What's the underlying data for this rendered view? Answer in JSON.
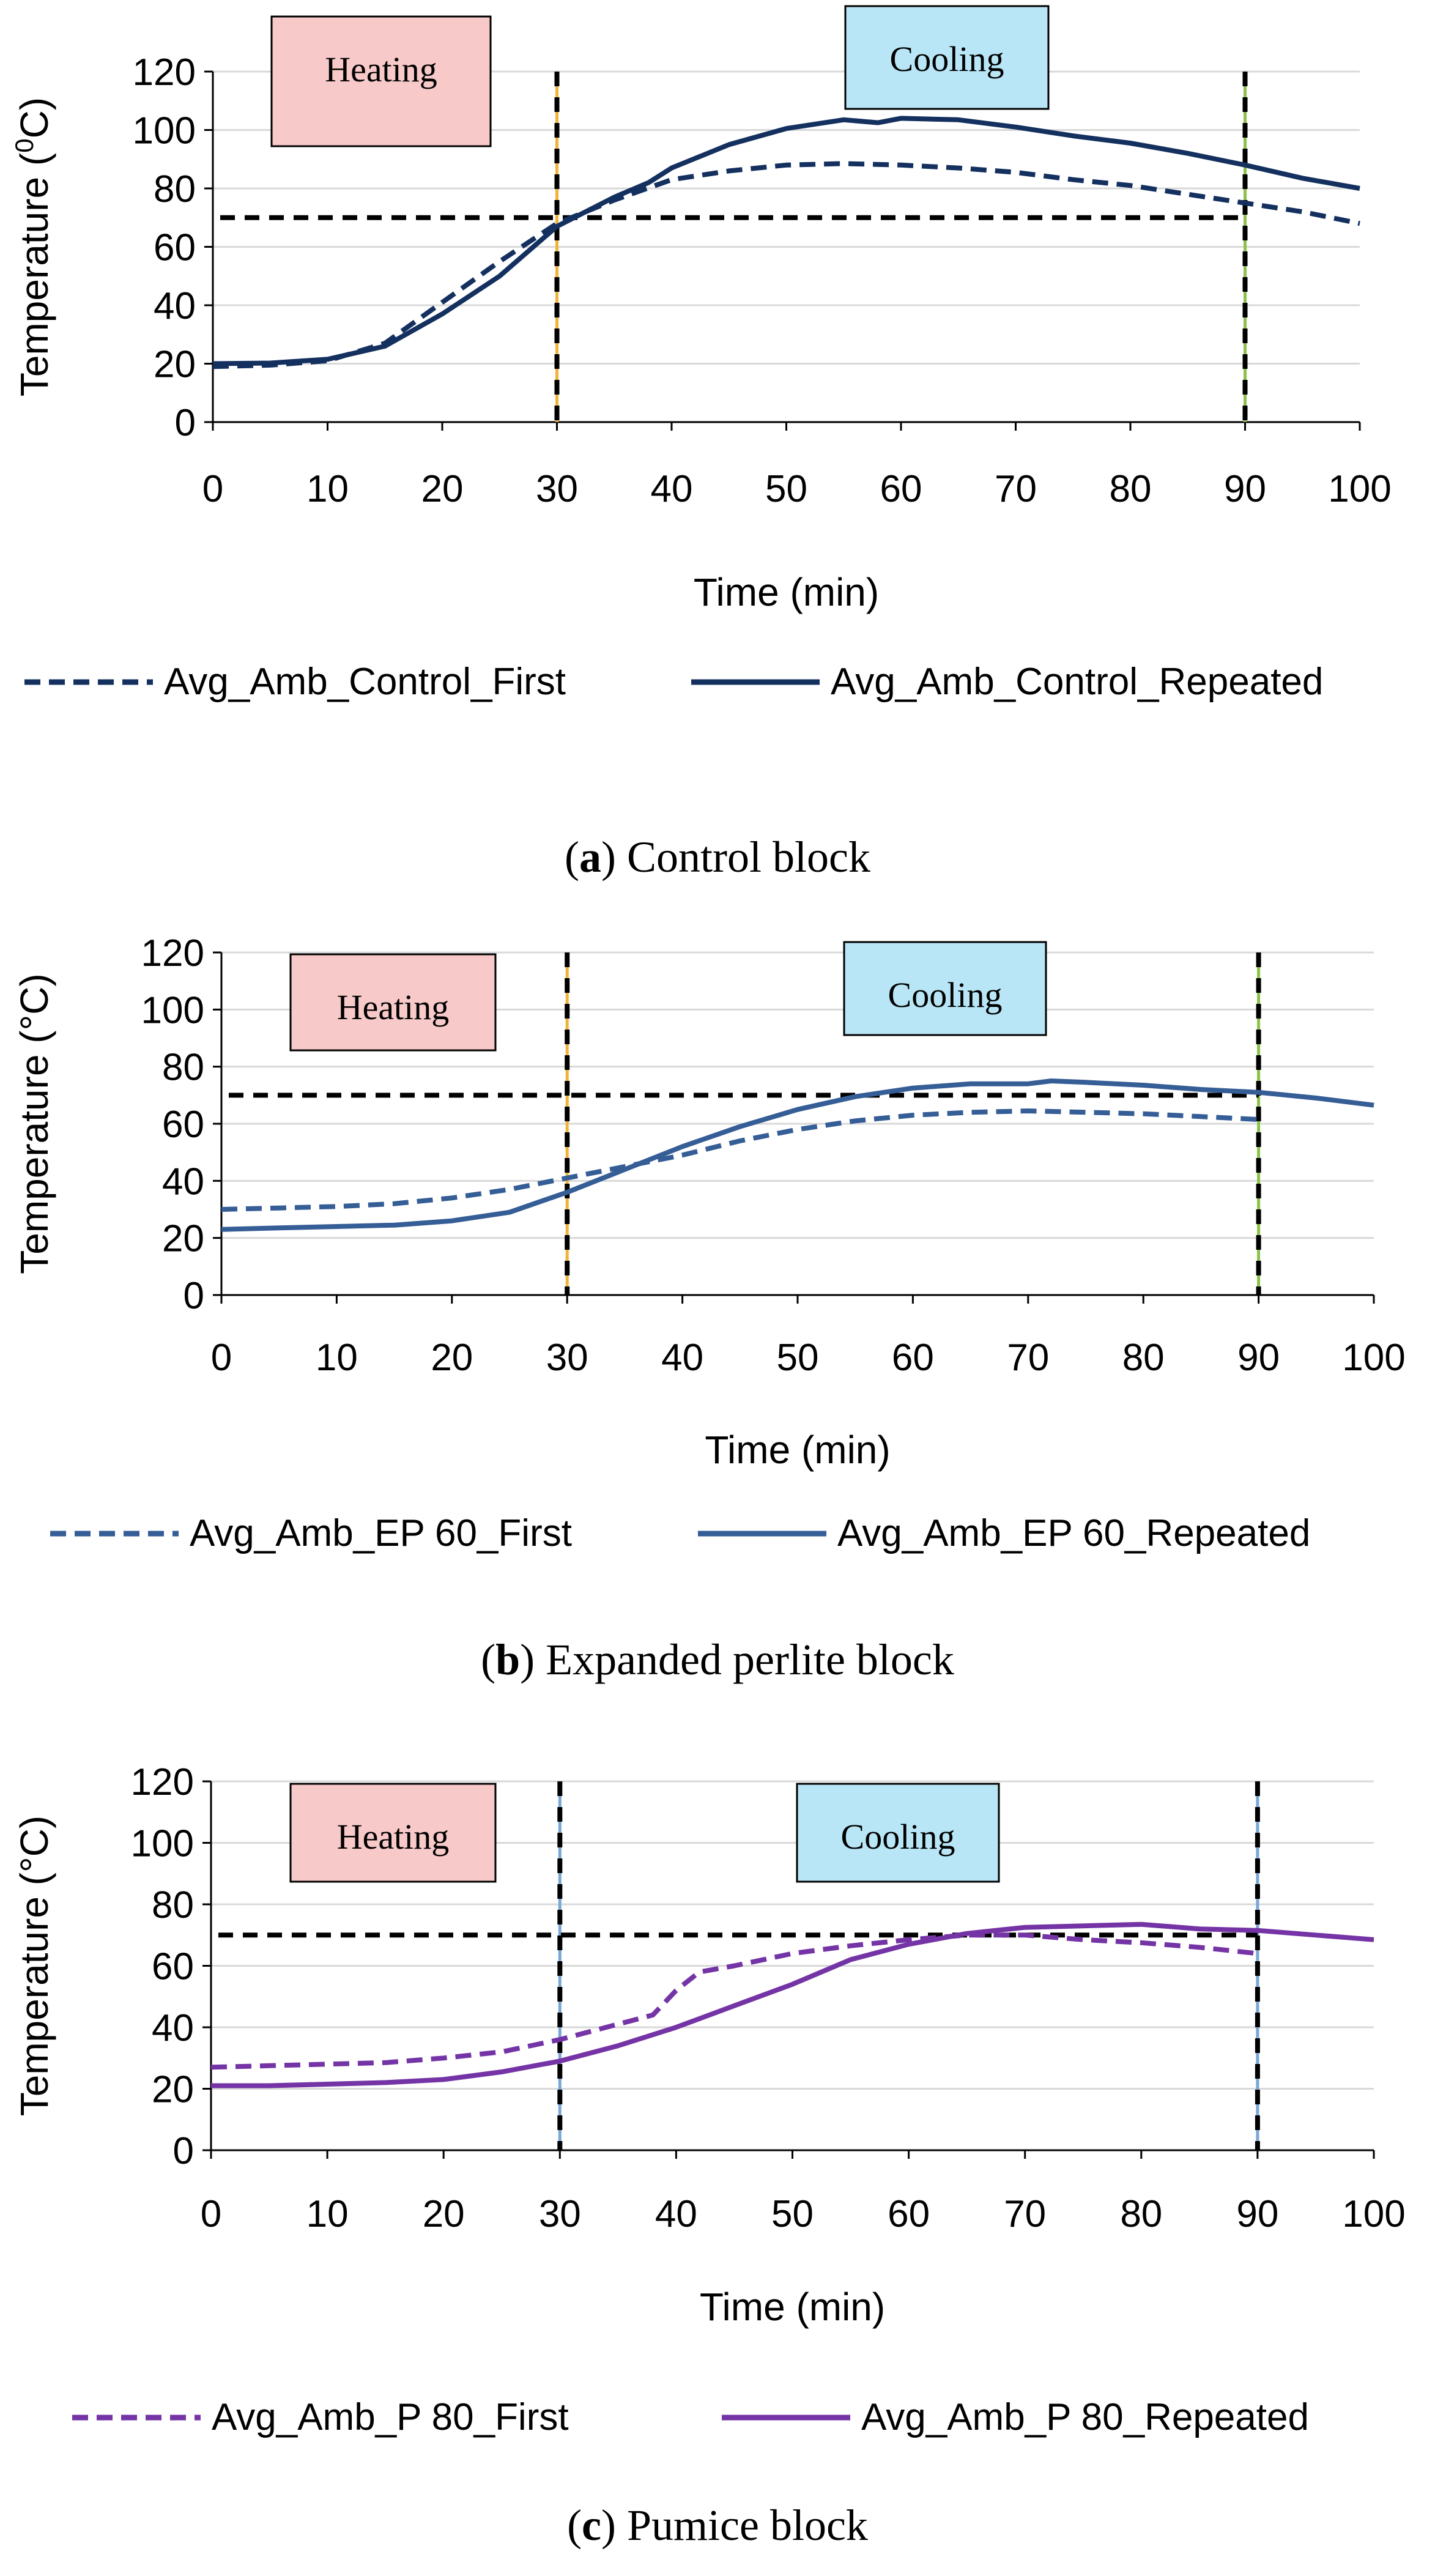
{
  "colors": {
    "control": "#14305f",
    "ep": "#355d96",
    "pumice": "#7434a6",
    "heating_box": "#f8c9c9",
    "cooling_box": "#b8e6f6",
    "threshold": "#000000",
    "axis": "#000000",
    "grid": "#d9d9d9",
    "marker_heat": "#f0b43a",
    "marker_cool": "#8bc34a",
    "marker_blue": "#79a7d8"
  },
  "chart_data": [
    {
      "id": "a",
      "type": "line",
      "xlabel": "Time (min)",
      "ylabel_main": "Temperature (",
      "ylabel_sup": "0",
      "ylabel_end": "C)",
      "xlim": [
        0,
        100
      ],
      "ylim": [
        0,
        120
      ],
      "xticks": [
        0,
        10,
        20,
        30,
        40,
        50,
        60,
        70,
        80,
        90,
        100
      ],
      "yticks": [
        0,
        20,
        40,
        60,
        80,
        100,
        120
      ],
      "xtick_labels": [
        "0",
        "10",
        "20",
        "30",
        "40",
        "50",
        "60",
        "70",
        "80",
        "90",
        "100"
      ],
      "ytick_labels": [
        "0",
        "20",
        "40",
        "60",
        "80",
        "100",
        "120"
      ],
      "annotations": {
        "heating": "Heating",
        "cooling": "Cooling"
      },
      "threshold": 70,
      "vlines": [
        30,
        90
      ],
      "caption": {
        "letter": "a",
        "text": ") Control block"
      },
      "series": [
        {
          "name": "Avg_Amb_Control_First",
          "dash": true,
          "x": [
            0,
            5,
            10,
            15,
            20,
            25,
            30,
            35,
            40,
            45,
            50,
            55,
            60,
            65,
            70,
            75,
            80,
            85,
            90,
            95,
            100
          ],
          "values": [
            19,
            19.5,
            21,
            27,
            41,
            55,
            68,
            76,
            83,
            86,
            88,
            88.5,
            88,
            87,
            85.5,
            83,
            81,
            78,
            75,
            72,
            68
          ]
        },
        {
          "name": "Avg_Amb_Control_Repeated",
          "dash": false,
          "x": [
            0,
            5,
            10,
            15,
            20,
            25,
            30,
            35,
            38,
            40,
            45,
            50,
            55,
            58,
            60,
            65,
            70,
            75,
            80,
            85,
            90,
            95,
            100
          ],
          "values": [
            20,
            20.2,
            21.5,
            26,
            37,
            50,
            67,
            77,
            82,
            87,
            95,
            100.5,
            103.5,
            102.5,
            104,
            103.5,
            101,
            98,
            95.5,
            92,
            88,
            83.5,
            80
          ]
        }
      ],
      "legend": [
        "Avg_Amb_Control_First",
        "Avg_Amb_Control_Repeated"
      ]
    },
    {
      "id": "b",
      "type": "line",
      "xlabel": "Time (min)",
      "ylabel_main": "Temperature (°C)",
      "ylabel_sup": "",
      "ylabel_end": "",
      "xlim": [
        0,
        100
      ],
      "ylim": [
        0,
        120
      ],
      "xticks": [
        0,
        10,
        20,
        30,
        40,
        50,
        60,
        70,
        80,
        90,
        100
      ],
      "yticks": [
        0,
        20,
        40,
        60,
        80,
        100,
        120
      ],
      "xtick_labels": [
        "0",
        "10",
        "20",
        "30",
        "40",
        "50",
        "60",
        "70",
        "80",
        "90",
        "100"
      ],
      "ytick_labels": [
        "0",
        "20",
        "40",
        "60",
        "80",
        "100",
        "120"
      ],
      "annotations": {
        "heating": "Heating",
        "cooling": "Cooling"
      },
      "threshold": 70,
      "vlines": [
        30,
        90
      ],
      "caption": {
        "letter": "b",
        "text": ") Expanded perlite block"
      },
      "series": [
        {
          "name": "Avg_Amb_EP 60_First",
          "dash": true,
          "x": [
            0,
            5,
            10,
            15,
            20,
            25,
            30,
            35,
            40,
            45,
            50,
            55,
            60,
            65,
            70,
            75,
            80,
            85,
            90
          ],
          "values": [
            30,
            30.5,
            31,
            32,
            34,
            37,
            41,
            45,
            49,
            54,
            58,
            61,
            63,
            64,
            64.5,
            64,
            63.5,
            62.5,
            61.5
          ]
        },
        {
          "name": "Avg_Amb_EP 60_Repeated",
          "dash": false,
          "x": [
            0,
            5,
            10,
            15,
            20,
            25,
            30,
            35,
            40,
            45,
            50,
            55,
            60,
            65,
            70,
            72,
            75,
            80,
            85,
            90,
            95,
            100
          ],
          "values": [
            23,
            23.5,
            24,
            24.5,
            26,
            29,
            36,
            44,
            52,
            59,
            65,
            69.5,
            72.5,
            74,
            74,
            75,
            74.5,
            73.5,
            72,
            71,
            69,
            66.5
          ]
        }
      ],
      "legend": [
        "Avg_Amb_EP 60_First",
        "Avg_Amb_EP 60_Repeated"
      ]
    },
    {
      "id": "c",
      "type": "line",
      "xlabel": "Time (min)",
      "ylabel_main": "Temperature (°C)",
      "ylabel_sup": "",
      "ylabel_end": "",
      "xlim": [
        0,
        100
      ],
      "ylim": [
        0,
        120
      ],
      "xticks": [
        0,
        10,
        20,
        30,
        40,
        50,
        60,
        70,
        80,
        90,
        100
      ],
      "yticks": [
        0,
        20,
        40,
        60,
        80,
        100,
        120
      ],
      "xtick_labels": [
        "0",
        "10",
        "20",
        "30",
        "40",
        "50",
        "60",
        "70",
        "80",
        "90",
        "100"
      ],
      "ytick_labels": [
        "0",
        "20",
        "40",
        "60",
        "80",
        "100",
        "120"
      ],
      "annotations": {
        "heating": "Heating",
        "cooling": "Cooling"
      },
      "threshold": 70,
      "vlines": [
        30,
        90
      ],
      "caption": {
        "letter": "c",
        "text": ") Pumice block"
      },
      "series": [
        {
          "name": "Avg_Amb_P 80_First",
          "dash": true,
          "x": [
            0,
            5,
            10,
            15,
            20,
            25,
            30,
            35,
            38,
            40,
            42,
            45,
            50,
            55,
            60,
            65,
            70,
            75,
            80,
            85,
            90
          ],
          "values": [
            27,
            27.5,
            28,
            28.5,
            30,
            32,
            36,
            41,
            44,
            52,
            58,
            60,
            64,
            66.5,
            68.5,
            70,
            70,
            68.5,
            67.5,
            66,
            64
          ]
        },
        {
          "name": "Avg_Amb_P 80_Repeated",
          "dash": false,
          "x": [
            0,
            5,
            10,
            15,
            20,
            25,
            30,
            35,
            40,
            45,
            50,
            55,
            60,
            65,
            70,
            75,
            80,
            85,
            90,
            95,
            100
          ],
          "values": [
            21,
            21,
            21.5,
            22,
            23,
            25.5,
            29,
            34,
            40,
            47,
            54,
            62,
            67,
            70.5,
            72.5,
            73,
            73.5,
            72,
            71.5,
            70,
            68.5
          ]
        }
      ],
      "legend": [
        "Avg_Amb_P 80_First",
        "Avg_Amb_P 80_Repeated"
      ]
    }
  ]
}
